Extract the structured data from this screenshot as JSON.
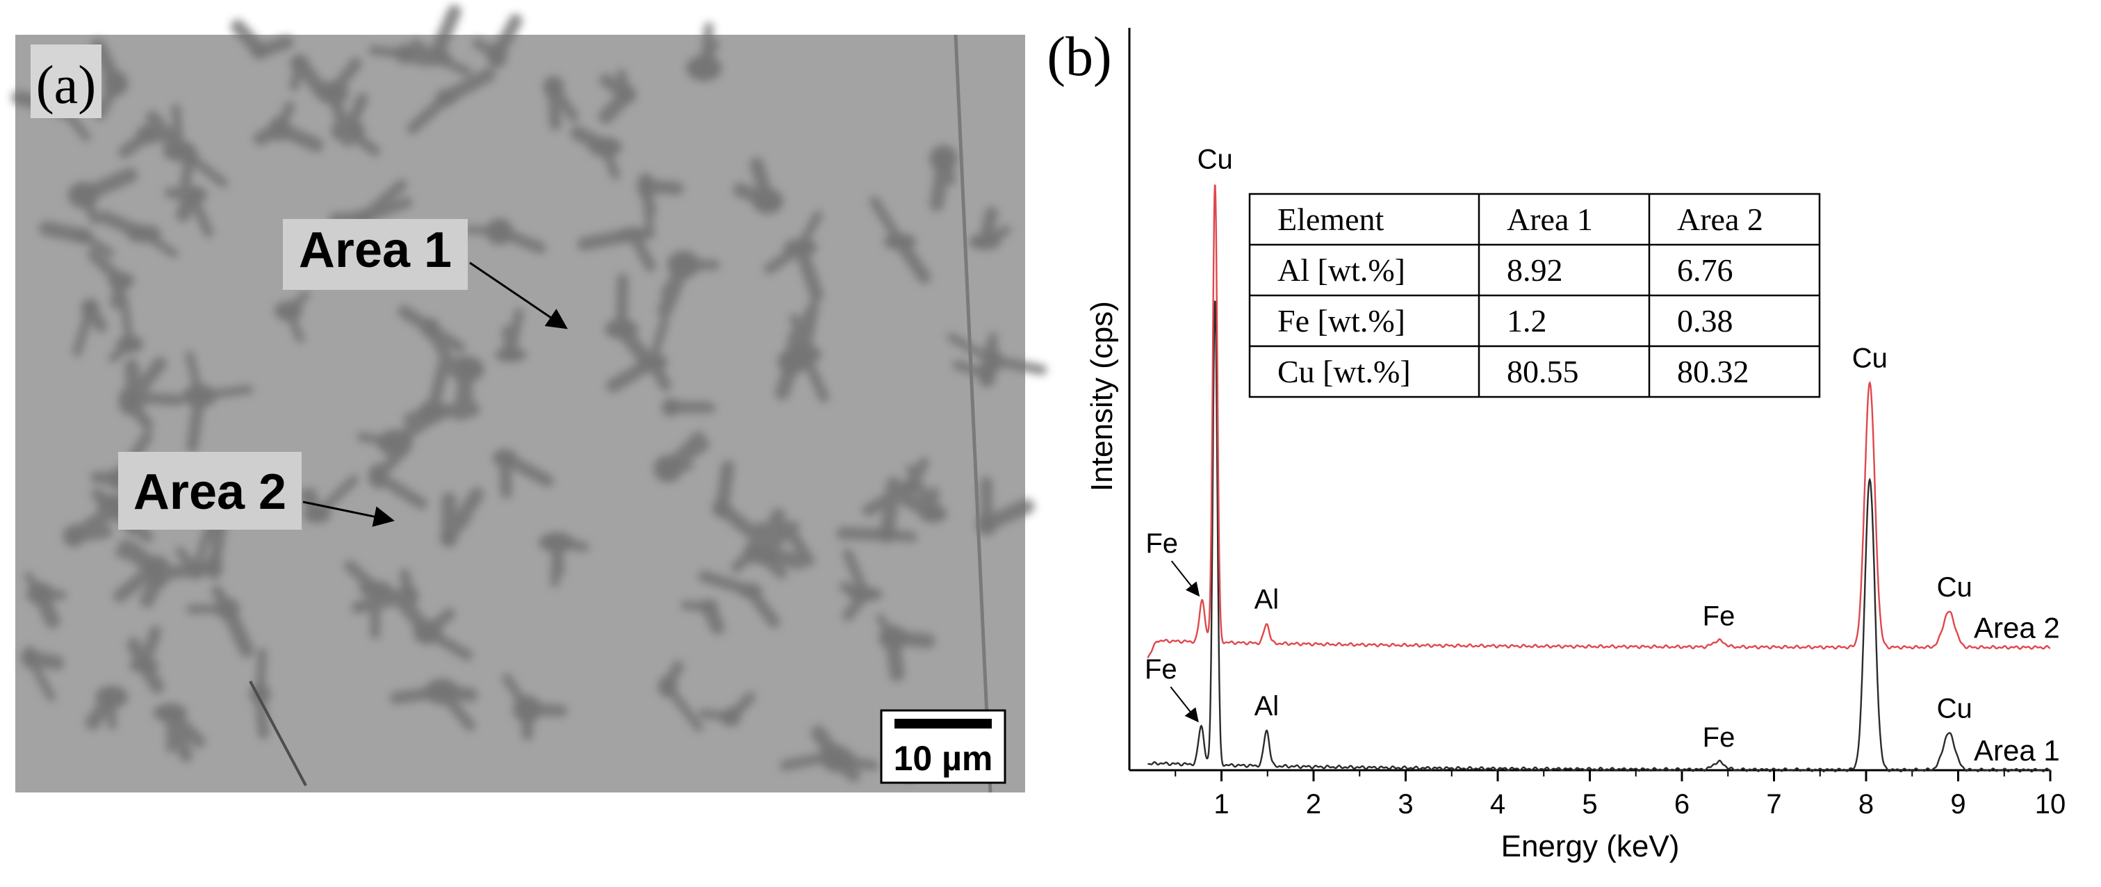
{
  "panel_a": {
    "label": "(a)",
    "annotations": [
      {
        "text": "Area 1"
      },
      {
        "text": "Area 2"
      }
    ],
    "scale_bar": "10 µm"
  },
  "panel_b": {
    "label": "(b)"
  },
  "chart_data": {
    "type": "line",
    "xlabel": "Energy (keV)",
    "ylabel": "Intensity (cps)",
    "xlim": [
      0,
      10
    ],
    "ylim": [
      0,
      1.15
    ],
    "xticks": [
      1,
      2,
      3,
      4,
      5,
      6,
      7,
      8,
      9,
      10
    ],
    "y_tick_labels": false,
    "grid": false,
    "series": [
      {
        "name": "Area 1",
        "color": "#2b2b2b",
        "baseline": 0.0,
        "peaks": [
          {
            "element": "Fe",
            "energy": 0.78,
            "height": 0.06,
            "width": 0.03
          },
          {
            "element": "Cu",
            "energy": 0.93,
            "height": 0.72,
            "width": 0.025
          },
          {
            "element": "Al",
            "energy": 1.49,
            "height": 0.055,
            "width": 0.03
          },
          {
            "element": "Fe",
            "energy": 6.4,
            "height": 0.012,
            "width": 0.06
          },
          {
            "element": "Cu",
            "energy": 8.04,
            "height": 0.45,
            "width": 0.055
          },
          {
            "element": "Cu",
            "energy": 8.9,
            "height": 0.057,
            "width": 0.065
          }
        ]
      },
      {
        "name": "Area 2",
        "color": "#e0474c",
        "baseline": 0.19,
        "peaks": [
          {
            "element": "Fe",
            "energy": 0.79,
            "height": 0.065,
            "width": 0.03
          },
          {
            "element": "Cu",
            "energy": 0.93,
            "height": 0.71,
            "width": 0.025
          },
          {
            "element": "Al",
            "energy": 1.49,
            "height": 0.03,
            "width": 0.03
          },
          {
            "element": "Fe",
            "energy": 6.4,
            "height": 0.01,
            "width": 0.06
          },
          {
            "element": "Cu",
            "energy": 8.04,
            "height": 0.41,
            "width": 0.055
          },
          {
            "element": "Cu",
            "energy": 8.9,
            "height": 0.055,
            "width": 0.065
          }
        ]
      }
    ],
    "peak_labels": [
      {
        "text": "Cu",
        "energy": 0.93,
        "series": "Area 2"
      },
      {
        "text": "Fe",
        "energy": 0.79,
        "series": "Area 2"
      },
      {
        "text": "Al",
        "energy": 1.49,
        "series": "Area 2"
      },
      {
        "text": "Fe",
        "energy": 6.4,
        "series": "Area 2"
      },
      {
        "text": "Cu",
        "energy": 8.04,
        "series": "Area 2"
      },
      {
        "text": "Cu",
        "energy": 8.9,
        "series": "Area 2"
      },
      {
        "text": "Fe",
        "energy": 0.78,
        "series": "Area 1"
      },
      {
        "text": "Al",
        "energy": 1.49,
        "series": "Area 1"
      },
      {
        "text": "Fe",
        "energy": 6.4,
        "series": "Area 1"
      },
      {
        "text": "Cu",
        "energy": 8.9,
        "series": "Area 1"
      }
    ],
    "inset_table": {
      "headers": [
        "Element",
        "Area 1",
        "Area 2"
      ],
      "rows": [
        [
          "Al [wt.%]",
          "8.92",
          "6.76"
        ],
        [
          "Fe [wt.%]",
          "1.2",
          "0.38"
        ],
        [
          "Cu [wt.%]",
          "80.55",
          "80.32"
        ]
      ]
    }
  }
}
